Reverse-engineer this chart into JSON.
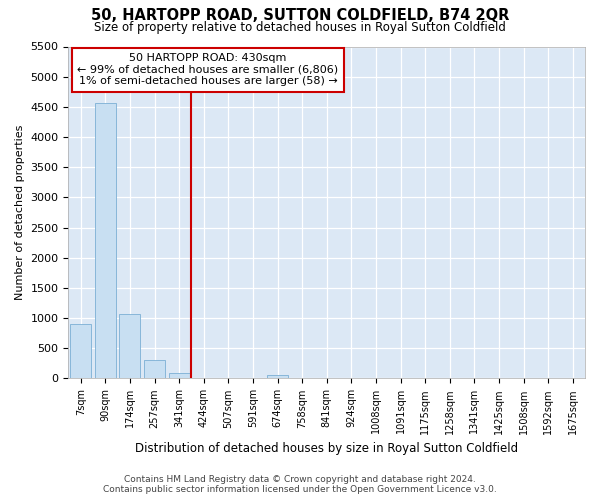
{
  "title": "50, HARTOPP ROAD, SUTTON COLDFIELD, B74 2QR",
  "subtitle": "Size of property relative to detached houses in Royal Sutton Coldfield",
  "xlabel": "Distribution of detached houses by size in Royal Sutton Coldfield",
  "ylabel": "Number of detached properties",
  "categories": [
    "7sqm",
    "90sqm",
    "174sqm",
    "257sqm",
    "341sqm",
    "424sqm",
    "507sqm",
    "591sqm",
    "674sqm",
    "758sqm",
    "841sqm",
    "924sqm",
    "1008sqm",
    "1091sqm",
    "1175sqm",
    "1258sqm",
    "1341sqm",
    "1425sqm",
    "1508sqm",
    "1592sqm",
    "1675sqm"
  ],
  "values": [
    900,
    4570,
    1070,
    300,
    90,
    0,
    0,
    0,
    60,
    0,
    0,
    0,
    0,
    0,
    0,
    0,
    0,
    0,
    0,
    0,
    0
  ],
  "bar_color": "#c8dff2",
  "bar_edge_color": "#7bafd4",
  "vline_index": 5,
  "vline_color": "#cc0000",
  "annotation_title": "50 HARTOPP ROAD: 430sqm",
  "annotation_line2": "← 99% of detached houses are smaller (6,806)",
  "annotation_line3": "1% of semi-detached houses are larger (58) →",
  "annotation_box_color": "#cc0000",
  "ylim": [
    0,
    5500
  ],
  "yticks": [
    0,
    500,
    1000,
    1500,
    2000,
    2500,
    3000,
    3500,
    4000,
    4500,
    5000,
    5500
  ],
  "footer_line1": "Contains HM Land Registry data © Crown copyright and database right 2024.",
  "footer_line2": "Contains public sector information licensed under the Open Government Licence v3.0.",
  "fig_bg_color": "#ffffff",
  "plot_bg_color": "#dce8f5"
}
